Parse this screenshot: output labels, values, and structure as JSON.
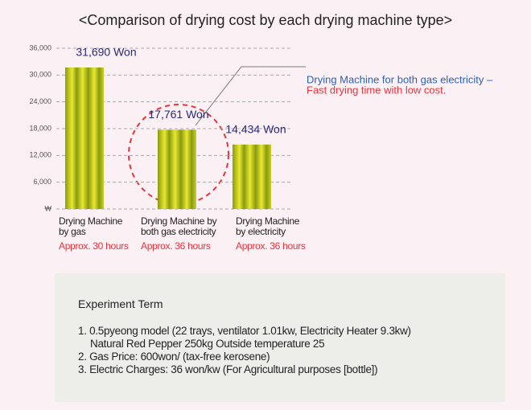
{
  "chart_data": {
    "type": "bar",
    "title": "<Comparison of drying cost by each drying machine type>",
    "categories": [
      "Drying Machine\nby gas",
      "Drying Machine by\nboth gas   electricity",
      "Drying Machine\nby electricity"
    ],
    "category_notes": [
      "Approx. 30 hours",
      "Approx. 36 hours",
      "Approx. 36 hours"
    ],
    "values": [
      31690,
      17761,
      14434
    ],
    "value_labels": [
      "31,690 Won",
      "17,761 Won",
      "14,434 Won"
    ],
    "ylim": [
      0,
      36000
    ],
    "yticks": [
      {
        "value": 0,
        "label": "₩"
      },
      {
        "value": 6000,
        "label": "6,000"
      },
      {
        "value": 12000,
        "label": "12,000"
      },
      {
        "value": 18000,
        "label": "18,000"
      },
      {
        "value": 24000,
        "label": "24,000"
      },
      {
        "value": 30000,
        "label": "30,000"
      },
      {
        "value": 36000,
        "label": "36,000"
      }
    ],
    "grid": true,
    "annotation": [
      "Drying Machine for both gas   electricity –",
      "Fast drying time with low cost."
    ]
  },
  "experiment": {
    "title": "Experiment Term",
    "items": [
      "1. 0.5pyeong model (22 trays, ventilator 1.01kw, Electricity Heater 9.3kw)\nNatural Red Pepper 250kg Outside temperature 25",
      "2. Gas Price: 600won/  (tax-free kerosene)",
      "3. Electric Charges: 36 won/kw (For Agricultural purposes [bottle])"
    ]
  }
}
